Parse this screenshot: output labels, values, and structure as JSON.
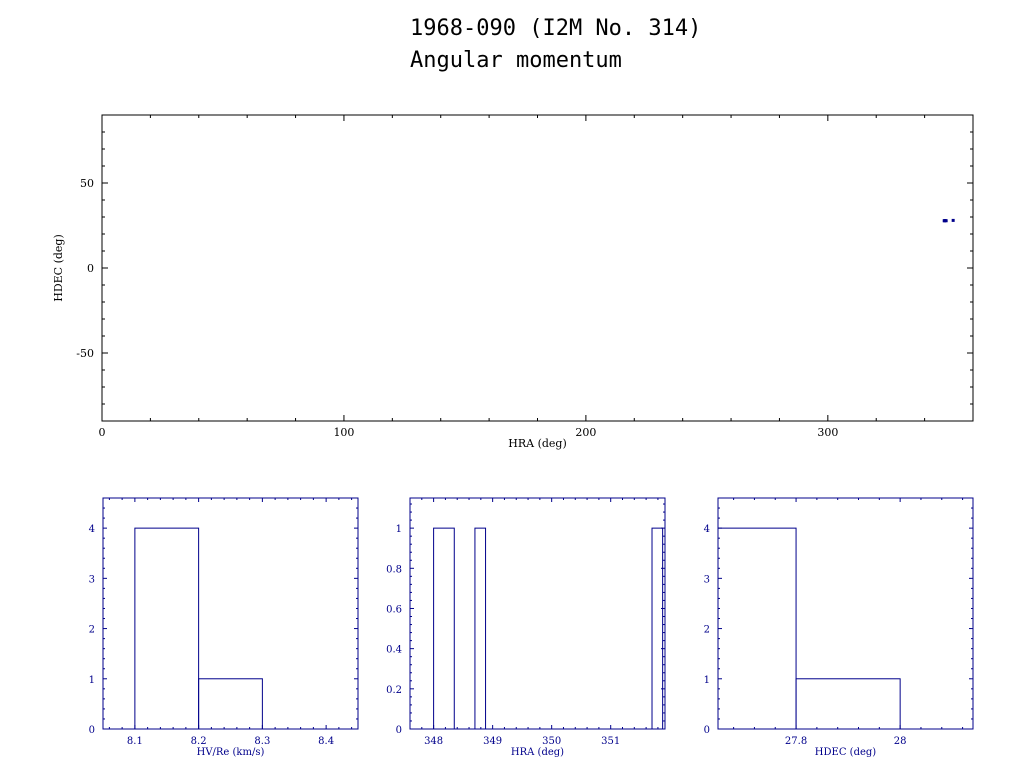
{
  "title": "1968-090 (I2M No. 314)",
  "subtitle": "Angular momentum",
  "colors": {
    "data": "#00008b",
    "axis": "#000000",
    "hist": "#00008b"
  },
  "chart_data": [
    {
      "type": "scatter",
      "xlabel": "HRA (deg)",
      "ylabel": "HDEC (deg)",
      "xlim": [
        0,
        360
      ],
      "ylim": [
        -90,
        90
      ],
      "xticks": [
        0,
        100,
        200,
        300
      ],
      "yticks": [
        -50,
        0,
        50
      ],
      "points": [
        {
          "x": 348.1,
          "y": 27.8
        },
        {
          "x": 348.3,
          "y": 27.8
        },
        {
          "x": 348.5,
          "y": 27.9
        },
        {
          "x": 348.9,
          "y": 27.8
        },
        {
          "x": 351.8,
          "y": 28.0
        }
      ]
    },
    {
      "type": "bar",
      "xlabel": "HV/Re (km/s)",
      "xlim": [
        8.05,
        8.45
      ],
      "ylim": [
        0,
        4.6
      ],
      "xticks": [
        8.1,
        8.2,
        8.3,
        8.4
      ],
      "xtick_labels": [
        "8.1",
        "8.2",
        "8.3",
        "8.4"
      ],
      "yticks": [
        0,
        1,
        2,
        3,
        4
      ],
      "ytick_labels": [
        "0",
        "1",
        "2",
        "3",
        "4"
      ],
      "bins": [
        {
          "from": 8.1,
          "to": 8.2,
          "count": 4
        },
        {
          "from": 8.2,
          "to": 8.3,
          "count": 1
        }
      ]
    },
    {
      "type": "bar",
      "xlabel": "HRA (deg)",
      "xlim": [
        347.6,
        351.92
      ],
      "ylim": [
        0,
        1.15
      ],
      "xticks": [
        348,
        349,
        350,
        351
      ],
      "xtick_labels": [
        "348",
        "349",
        "350",
        "351"
      ],
      "yticks": [
        0,
        0.2,
        0.4,
        0.6,
        0.8,
        1
      ],
      "ytick_labels": [
        "0",
        "0.2",
        "0.4",
        "0.6",
        "0.8",
        "1"
      ],
      "bins": [
        {
          "from": 348.0,
          "to": 348.35,
          "count": 1
        },
        {
          "from": 348.7,
          "to": 348.88,
          "count": 1
        },
        {
          "from": 351.7,
          "to": 351.88,
          "count": 1
        }
      ]
    },
    {
      "type": "bar",
      "xlabel": "HDEC (deg)",
      "xlim": [
        27.65,
        28.14
      ],
      "ylim": [
        0,
        4.6
      ],
      "xticks": [
        27.8,
        28
      ],
      "xtick_labels": [
        "27.8",
        "28"
      ],
      "yticks": [
        0,
        1,
        2,
        3,
        4
      ],
      "ytick_labels": [
        "0",
        "1",
        "2",
        "3",
        "4"
      ],
      "bins": [
        {
          "from": 27.65,
          "to": 27.8,
          "count": 4
        },
        {
          "from": 27.8,
          "to": 28.0,
          "count": 1
        }
      ]
    }
  ]
}
